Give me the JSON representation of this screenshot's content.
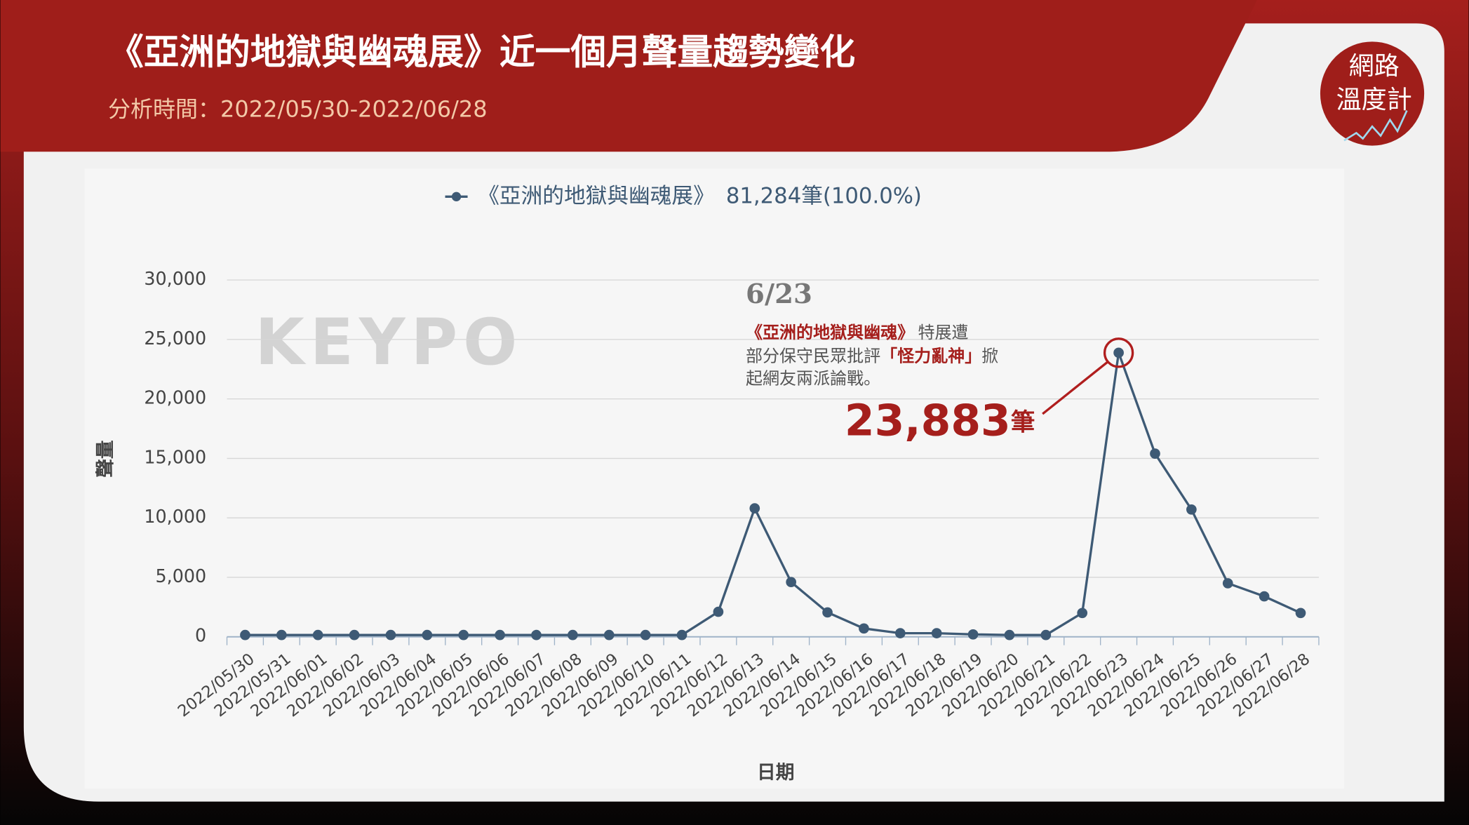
{
  "header": {
    "title": "《亞洲的地獄與幽魂展》近一個月聲量趨勢變化",
    "subtitle": "分析時間：2022/05/30-2022/06/28"
  },
  "logo": {
    "line1": "網路",
    "line2": "溫度計"
  },
  "watermark": "KEYPO",
  "chart_data": {
    "type": "line",
    "legend_summary": "81,284筆(100.0%)",
    "x_label": "日期",
    "y_label": "聲量",
    "categories": [
      "2022/05/30",
      "2022/05/31",
      "2022/06/01",
      "2022/06/02",
      "2022/06/03",
      "2022/06/04",
      "2022/06/05",
      "2022/06/06",
      "2022/06/07",
      "2022/06/08",
      "2022/06/09",
      "2022/06/10",
      "2022/06/11",
      "2022/06/12",
      "2022/06/13",
      "2022/06/14",
      "2022/06/15",
      "2022/06/16",
      "2022/06/17",
      "2022/06/18",
      "2022/06/19",
      "2022/06/20",
      "2022/06/21",
      "2022/06/22",
      "2022/06/23",
      "2022/06/24",
      "2022/06/25",
      "2022/06/26",
      "2022/06/27",
      "2022/06/28"
    ],
    "series": [
      {
        "name": "《亞洲的地獄與幽魂展》",
        "color": "#3e5a75",
        "values": [
          150,
          150,
          150,
          150,
          150,
          150,
          150,
          150,
          150,
          150,
          150,
          150,
          150,
          2100,
          10800,
          4600,
          2050,
          700,
          300,
          300,
          200,
          150,
          150,
          2000,
          23883,
          15400,
          10700,
          4500,
          3400,
          2000
        ]
      }
    ],
    "ylim": [
      0,
      30000
    ],
    "yticks": [
      0,
      {
        "value": 5000,
        "label": "5,000"
      },
      {
        "value": 10000,
        "label": "10,000"
      },
      {
        "value": 15000,
        "label": "15,000"
      },
      {
        "value": 20000,
        "label": "20,000"
      },
      {
        "value": 25000,
        "label": "25,000"
      },
      {
        "value": 30000,
        "label": "30,000"
      }
    ],
    "grid": true,
    "annotation": {
      "date": "6/23",
      "line1": [
        "《亞洲的地獄與幽魂》",
        "特展遭"
      ],
      "line2": [
        "部分保守民眾批評",
        "「怪力亂神」",
        "掀"
      ],
      "line3": "起網友兩派論戰。",
      "peak_number": "23,883",
      "peak_unit": "筆"
    }
  }
}
